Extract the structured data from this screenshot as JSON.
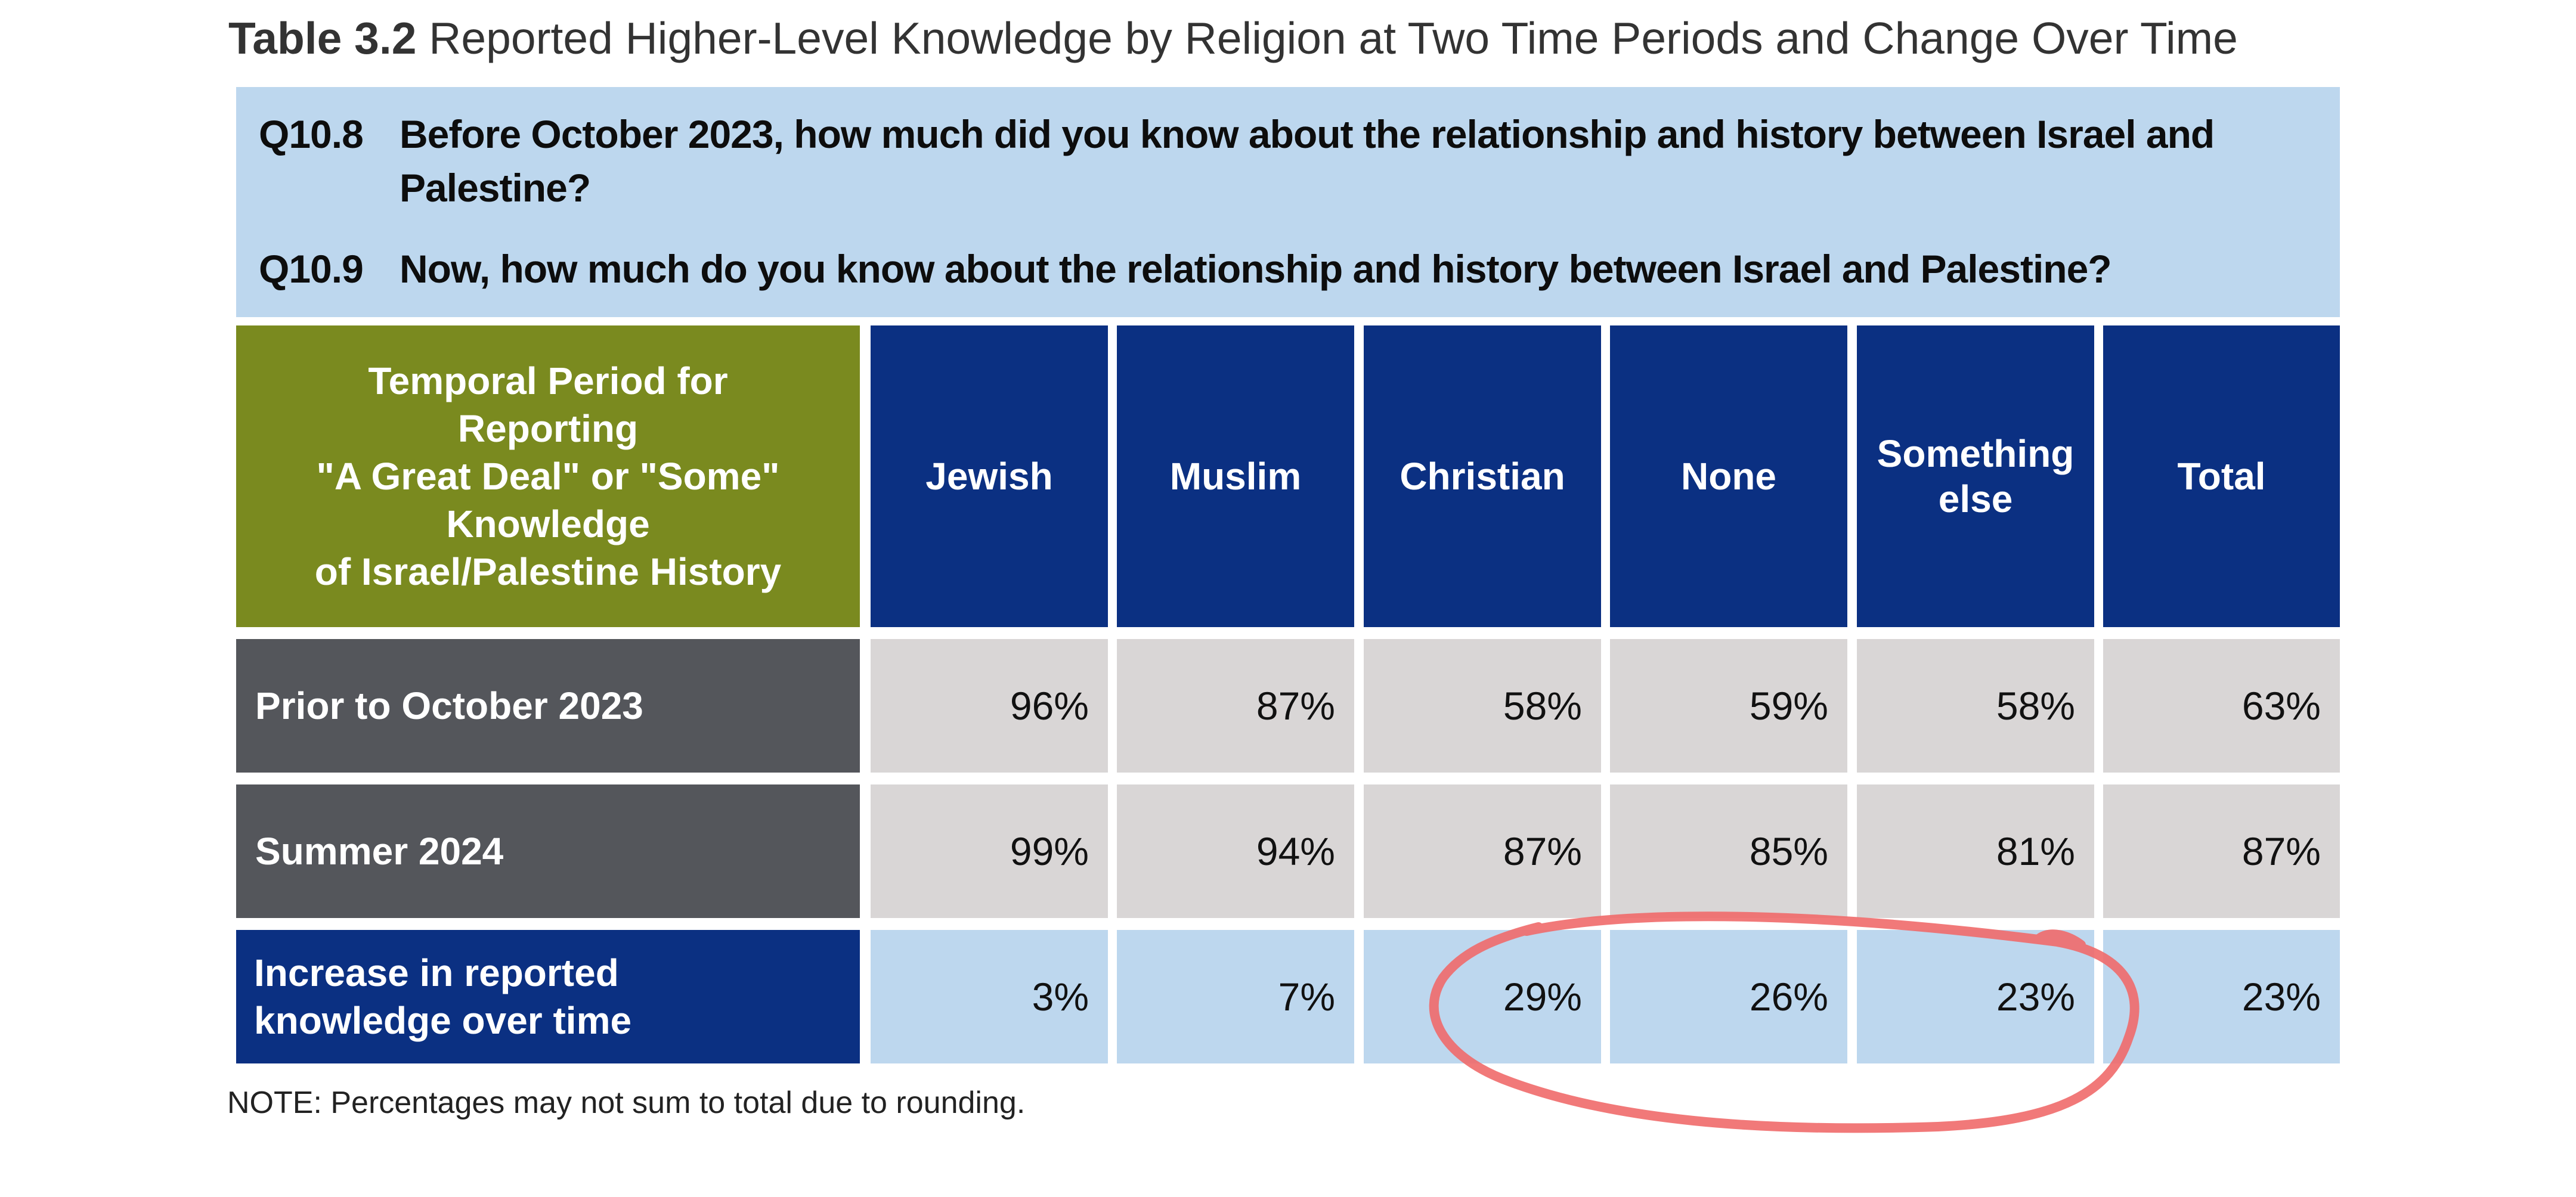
{
  "title": {
    "number": "Table 3.2",
    "text": "Reported Higher-Level Knowledge by Religion at Two Time Periods and Change Over Time"
  },
  "questions": [
    {
      "id": "Q10.8",
      "text": "Before October 2023, how much did you know about the relationship and history between Israel and Palestine?"
    },
    {
      "id": "Q10.9",
      "text": "Now, how much do you know about the relationship and history between Israel and Palestine?"
    }
  ],
  "table": {
    "corner_header": [
      "Temporal Period for",
      "Reporting",
      "\"A Great Deal\" or \"Some\"",
      "Knowledge",
      "of Israel/Palestine History"
    ],
    "columns": [
      "Jewish",
      "Muslim",
      "Christian",
      "None",
      "Something else",
      "Total"
    ],
    "rows": [
      {
        "label": "Prior to October 2023",
        "values": [
          "96%",
          "87%",
          "58%",
          "59%",
          "58%",
          "63%"
        ]
      },
      {
        "label": "Summer 2024",
        "values": [
          "99%",
          "94%",
          "87%",
          "85%",
          "81%",
          "87%"
        ]
      },
      {
        "label": "Increase in reported knowledge over time",
        "values": [
          "3%",
          "7%",
          "29%",
          "26%",
          "23%",
          "23%"
        ]
      }
    ]
  },
  "note": "NOTE: Percentages may not sum to total due to rounding.",
  "colors": {
    "question_bg": "#bdd7ee",
    "period_header_bg": "#7a8a1f",
    "religion_header_bg": "#0b3082",
    "row_label_gray_bg": "#54565b",
    "value_gray_bg": "#d9d6d6",
    "value_blue_bg": "#bdd7ee",
    "annotation_circle": "#f06a6a"
  }
}
